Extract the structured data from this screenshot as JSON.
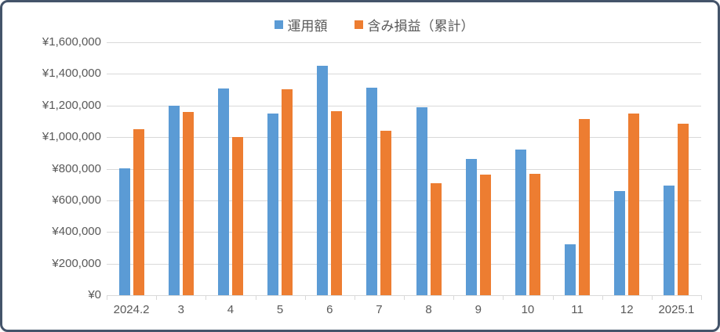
{
  "chart_data": {
    "type": "bar",
    "title": "",
    "categories": [
      "2024.2",
      "3",
      "4",
      "5",
      "6",
      "7",
      "8",
      "9",
      "10",
      "11",
      "12",
      "2025.1"
    ],
    "series": [
      {
        "name": "運用額",
        "color": "#5B9BD5",
        "values": [
          805000,
          1200000,
          1310000,
          1150000,
          1450000,
          1315000,
          1190000,
          860000,
          920000,
          320000,
          660000,
          695000
        ]
      },
      {
        "name": "含み損益（累計）",
        "color": "#ED7D31",
        "values": [
          1050000,
          1160000,
          1000000,
          1305000,
          1165000,
          1040000,
          710000,
          765000,
          770000,
          1115000,
          1150000,
          1085000
        ]
      }
    ],
    "y_axis": {
      "min": 0,
      "max": 1600000,
      "step": 200000,
      "tick_labels": [
        "¥0",
        "¥200,000",
        "¥400,000",
        "¥600,000",
        "¥800,000",
        "¥1,000,000",
        "¥1,200,000",
        "¥1,400,000",
        "¥1,600,000"
      ]
    },
    "grid": true,
    "legend_position": "top"
  },
  "legend": {
    "items": [
      {
        "label": "運用額",
        "color": "#5B9BD5"
      },
      {
        "label": "含み損益（累計）",
        "color": "#ED7D31"
      }
    ]
  },
  "colors": {
    "frame_border": "#44546A",
    "gridline": "#D9D9D9",
    "axis_text": "#595959",
    "background": "#FFFFFF"
  }
}
